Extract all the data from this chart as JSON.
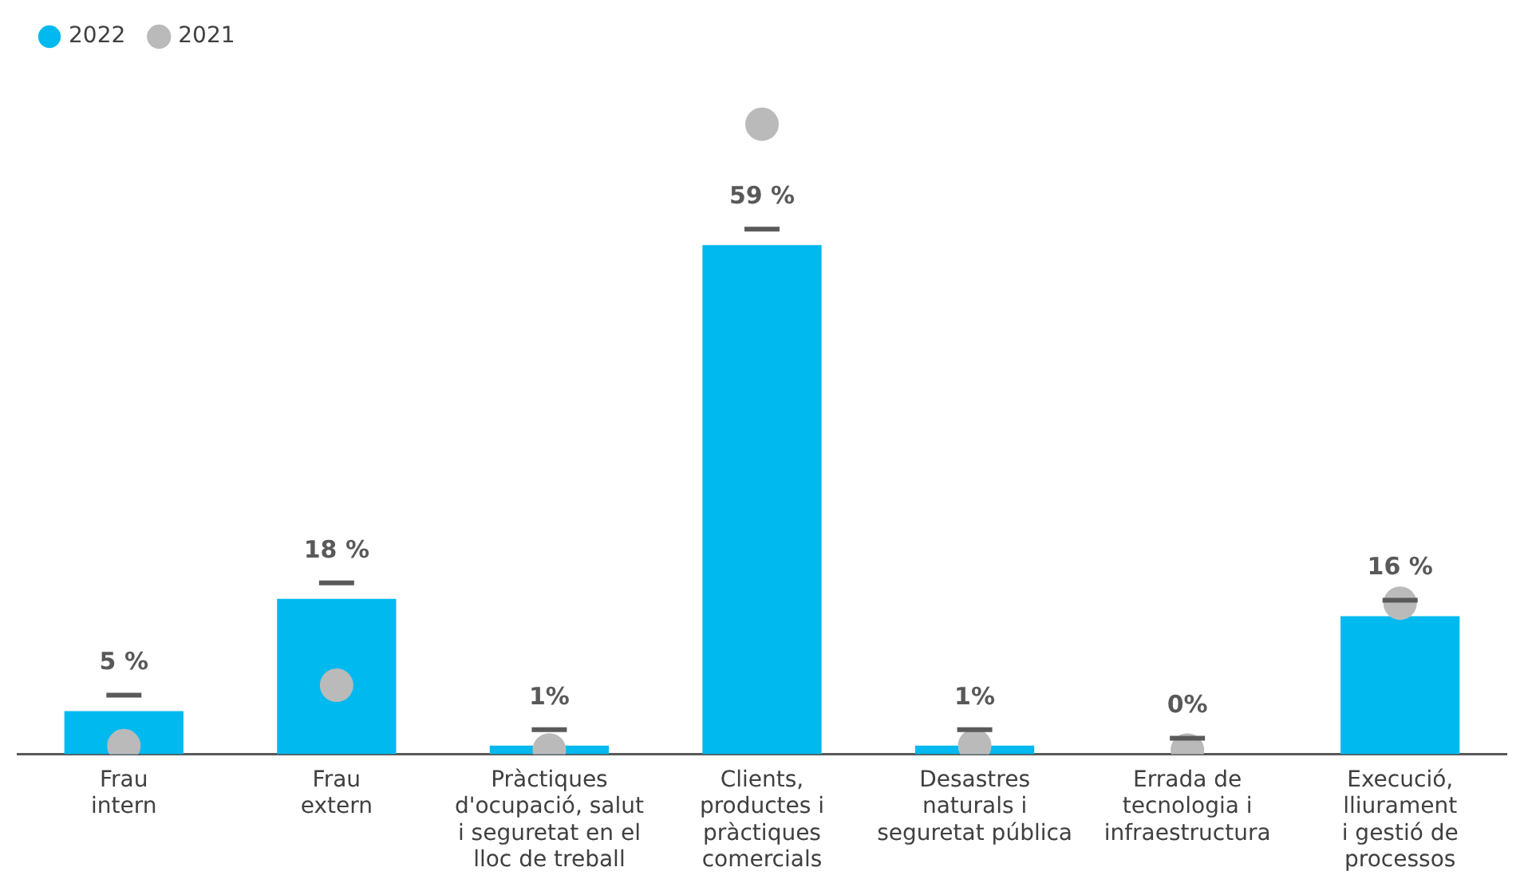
{
  "chart_data": {
    "type": "bar",
    "categories": [
      "Frau\nintern",
      "Frau\nextern",
      "Pràctiques\nd'ocupació, salut\ni seguretat en el\nlloc de treball",
      "Clients,\nproductes i\npràctiques\ncomercials",
      "Desastres\nnaturals i\nseguretat pública",
      "Errada de\ntecnologia i\ninfraestructura",
      "Execució,\nlliurament\ni gestió de\nprocessos"
    ],
    "series": [
      {
        "name": "2022",
        "color": "#00b9ee",
        "values": [
          5,
          18,
          1,
          59,
          1,
          0,
          16
        ],
        "value_labels": [
          "5 %",
          "18 %",
          "1%",
          "59 %",
          "1%",
          "0%",
          "16 %"
        ]
      },
      {
        "name": "2021",
        "type": "scatter",
        "color": "#bababa",
        "values": [
          1,
          8,
          0.5,
          73,
          1,
          0.5,
          17.5
        ]
      }
    ],
    "legend": "top left",
    "marker": "circle",
    "grid": false
  }
}
